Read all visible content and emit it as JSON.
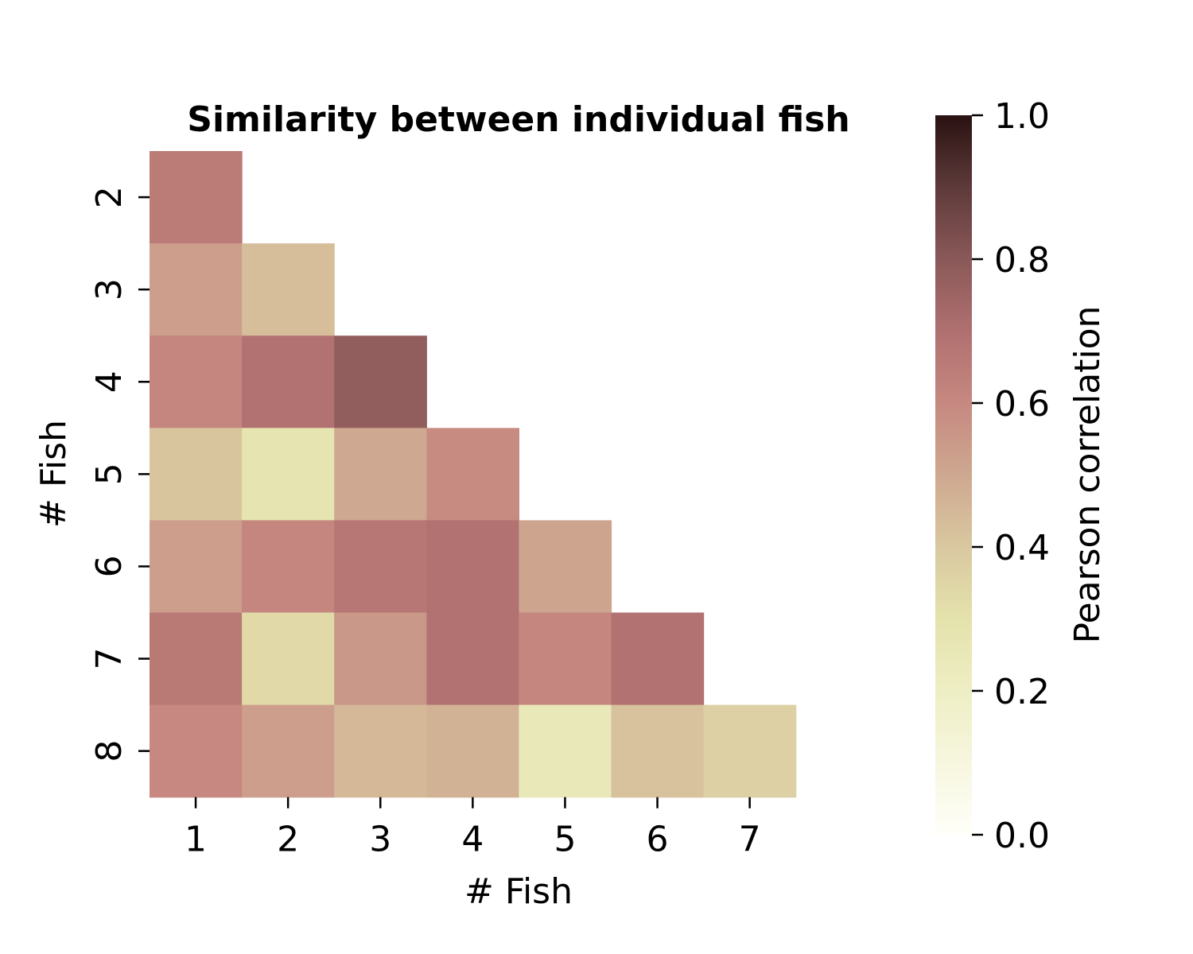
{
  "chart_data": {
    "type": "heatmap",
    "title": "Similarity between individual fish",
    "xlabel": "# Fish",
    "ylabel": "# Fish",
    "x_categories": [
      "1",
      "2",
      "3",
      "4",
      "5",
      "6",
      "7"
    ],
    "y_categories": [
      "2",
      "3",
      "4",
      "5",
      "6",
      "7",
      "8"
    ],
    "values": [
      [
        0.65,
        null,
        null,
        null,
        null,
        null,
        null
      ],
      [
        0.53,
        0.43,
        null,
        null,
        null,
        null,
        null
      ],
      [
        0.61,
        0.69,
        0.78,
        null,
        null,
        null,
        null
      ],
      [
        0.41,
        0.28,
        0.5,
        0.59,
        null,
        null,
        null
      ],
      [
        0.53,
        0.61,
        0.67,
        0.69,
        0.51,
        null,
        null
      ],
      [
        0.66,
        0.33,
        0.55,
        0.69,
        0.61,
        0.69,
        null
      ],
      [
        0.6,
        0.53,
        0.45,
        0.47,
        0.25,
        0.42,
        0.37
      ]
    ],
    "colorbar": {
      "label": "Pearson correlation",
      "vmin": 0.0,
      "vmax": 1.0,
      "ticks": [
        "0.0",
        "0.2",
        "0.4",
        "0.6",
        "0.8",
        "1.0"
      ],
      "colormap": [
        {
          "v": 0.0,
          "color": "#fffffa"
        },
        {
          "v": 0.2,
          "color": "#eeeec4"
        },
        {
          "v": 0.3,
          "color": "#e4e2ac"
        },
        {
          "v": 0.4,
          "color": "#d9c8a0"
        },
        {
          "v": 0.5,
          "color": "#cea890"
        },
        {
          "v": 0.6,
          "color": "#c68880"
        },
        {
          "v": 0.7,
          "color": "#b07070"
        },
        {
          "v": 0.8,
          "color": "#8a5858"
        },
        {
          "v": 0.9,
          "color": "#5e3a3a"
        },
        {
          "v": 1.0,
          "color": "#2a1212"
        }
      ]
    }
  }
}
